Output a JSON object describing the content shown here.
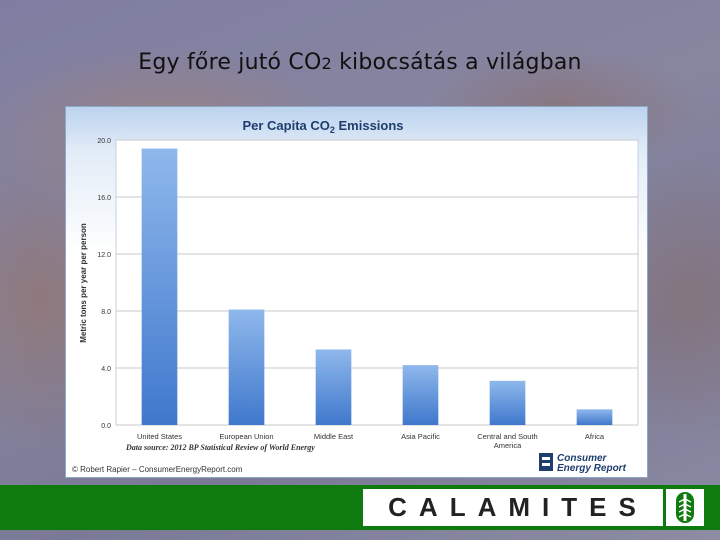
{
  "slide": {
    "title_pre": "Egy főre jutó CO",
    "title_sub": "2",
    "title_post": " kibocsátás a világban"
  },
  "chart_data": {
    "type": "bar",
    "title": "Per Capita CO",
    "title_sub": "2",
    "title_post": " Emissions",
    "ylabel": "Metric tons per year per person",
    "xlabel": "",
    "ylim": [
      0,
      20
    ],
    "yticks": [
      "0.0",
      "4.0",
      "8.0",
      "12.0",
      "16.0",
      "20.0"
    ],
    "grid": true,
    "legend": "none",
    "categories": [
      [
        "United States"
      ],
      [
        "European Union"
      ],
      [
        "Middle East"
      ],
      [
        "Asia Pacific"
      ],
      [
        "Central and South",
        "America"
      ],
      [
        "Africa"
      ]
    ],
    "values": [
      19.4,
      8.1,
      5.3,
      4.2,
      3.1,
      1.1
    ],
    "source": "Data source: 2012 BP Statistical Review of World Energy",
    "credit": "© Robert Rapier – ConsumerEnergyReport.com",
    "logo_line1": "Consumer",
    "logo_line2": "Energy Report",
    "colors": {
      "bar_top": "#8fb8ec",
      "bar_bottom": "#3f78cc",
      "title": "#1f3e6e"
    }
  },
  "brand": {
    "text": "CALAMITES"
  }
}
